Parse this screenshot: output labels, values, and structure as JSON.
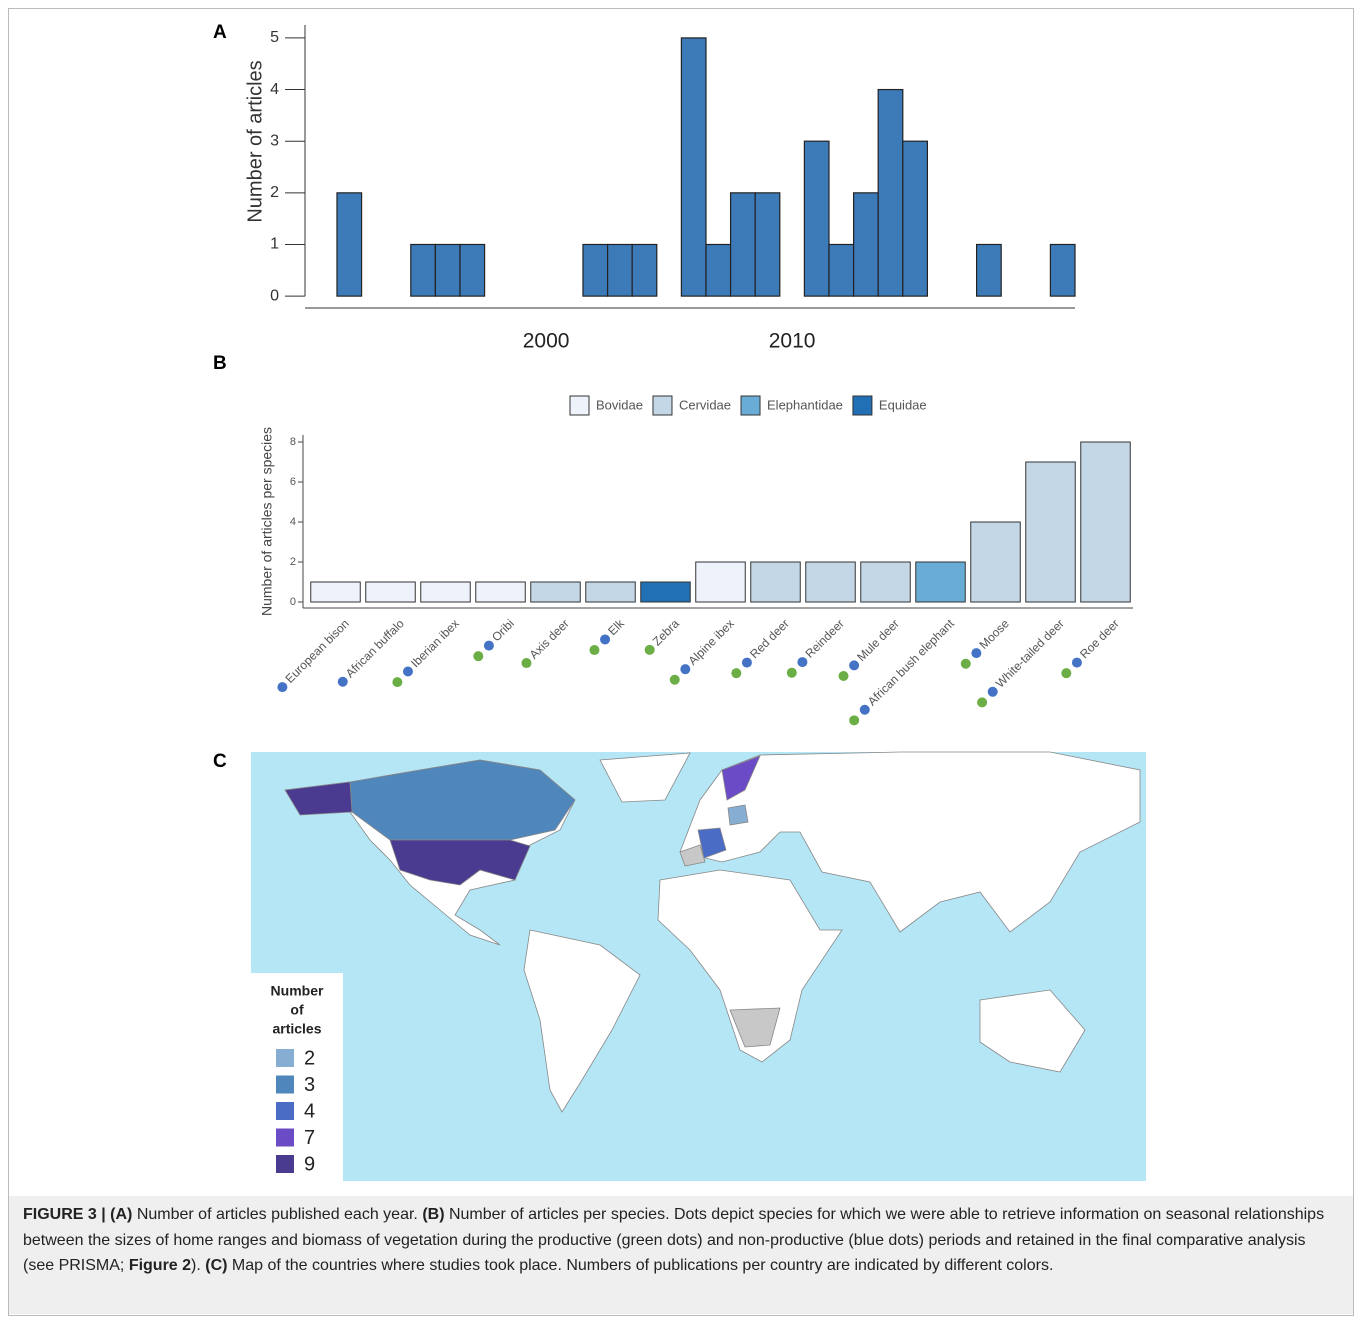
{
  "chart_data": [
    {
      "type": "bar",
      "label": "A",
      "y_label": "Number of articles",
      "color": "#3d7ab8",
      "x": [
        1992,
        1995,
        1996,
        1997,
        2002,
        2003,
        2004,
        2006,
        2007,
        2008,
        2009,
        2011,
        2012,
        2013,
        2014,
        2015,
        2018,
        2021
      ],
      "values": [
        2,
        1,
        1,
        1,
        1,
        1,
        1,
        5,
        1,
        2,
        2,
        3,
        1,
        2,
        4,
        3,
        1,
        1
      ],
      "xlim": [
        1990.2,
        2021.5
      ],
      "ylim": [
        -0.23,
        5.25
      ],
      "xticks": [
        2000,
        2010
      ],
      "yticks": [
        0,
        1,
        2,
        3,
        4,
        5
      ]
    },
    {
      "type": "bar",
      "label": "B",
      "y_label": "Number of articles per species",
      "categories": [
        "European bison",
        "African buffalo",
        "Iberian ibex",
        "Oribi",
        "Axis deer",
        "Elk",
        "Zebra",
        "Alpine ibex",
        "Red deer",
        "Reindeer",
        "Mule deer",
        "African bush elephant",
        "Moose",
        "White-tailed deer",
        "Roe deer"
      ],
      "series": [
        {
          "name": "Bovidae",
          "color": "#eef2fb",
          "values": [
            1,
            1,
            1,
            1,
            null,
            null,
            null,
            2,
            null,
            null,
            null,
            null,
            null,
            null,
            null
          ]
        },
        {
          "name": "Cervidae",
          "color": "#c3d7e7",
          "values": [
            null,
            null,
            null,
            null,
            1,
            1,
            null,
            null,
            2,
            2,
            2,
            null,
            4,
            7,
            8
          ]
        },
        {
          "name": "Elephantidae",
          "color": "#69acd6",
          "values": [
            null,
            null,
            null,
            null,
            null,
            null,
            null,
            null,
            null,
            null,
            null,
            2,
            null,
            null,
            null
          ]
        },
        {
          "name": "Equidae",
          "color": "#2170b5",
          "values": [
            null,
            null,
            null,
            null,
            null,
            null,
            1,
            null,
            null,
            null,
            null,
            null,
            null,
            null,
            null
          ]
        }
      ],
      "productive_dot": [
        false,
        false,
        true,
        true,
        true,
        true,
        true,
        true,
        true,
        true,
        true,
        true,
        true,
        true,
        true
      ],
      "non_productive_dot": [
        true,
        true,
        true,
        true,
        false,
        true,
        false,
        true,
        true,
        true,
        true,
        true,
        true,
        true,
        true
      ],
      "dot_colors": {
        "productive": "#6aae45",
        "non_productive": "#4472c4"
      },
      "ylim": [
        -0.3,
        8.35
      ],
      "yticks": [
        0,
        2,
        4,
        6,
        8
      ]
    }
  ],
  "map": {
    "label": "C",
    "legend_title_lines": [
      "Number",
      "of",
      "articles"
    ],
    "legend": [
      {
        "value": 2,
        "color": "#86aed3"
      },
      {
        "value": 3,
        "color": "#4f86bb"
      },
      {
        "value": 4,
        "color": "#4a6cc4"
      },
      {
        "value": 7,
        "color": "#6b4cc6"
      },
      {
        "value": 9,
        "color": "#4a3a90"
      }
    ]
  },
  "caption": {
    "runs": [
      {
        "text": "FIGURE 3 | ",
        "bold": true
      },
      {
        "text": "(A)",
        "bold": true
      },
      {
        "text": " Number of articles published each year. ",
        "bold": false
      },
      {
        "text": "(B)",
        "bold": true
      },
      {
        "text": " Number of articles per species. Dots depict species for which we were able to retrieve information on seasonal relationships between the sizes of home ranges and biomass of vegetation during the productive (green dots) and non-productive (blue dots) periods and retained in the final comparative analysis (see PRISMA; ",
        "bold": false
      },
      {
        "text": "Figure 2",
        "bold": true
      },
      {
        "text": "). ",
        "bold": false
      },
      {
        "text": "(C)",
        "bold": true
      },
      {
        "text": " Map of the countries where studies took place. Numbers of publications per country are indicated by different colors.",
        "bold": false
      }
    ]
  }
}
